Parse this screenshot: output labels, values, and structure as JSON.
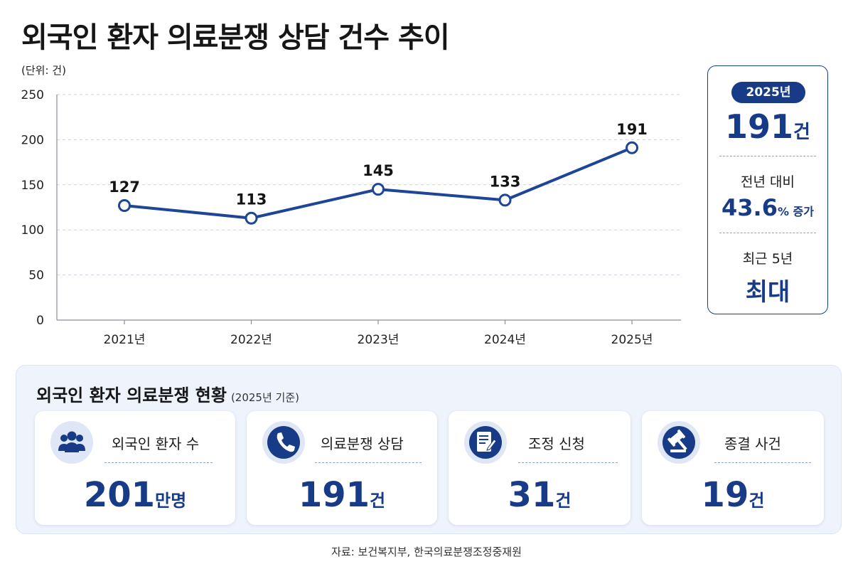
{
  "title": "외국인 환자 의료분쟁 상담 건수 추이",
  "unit_label": "(단위: 건)",
  "colors": {
    "accent": "#173b86",
    "line": "#1e4596",
    "grid": "#c9d1de"
  },
  "chart_data": {
    "type": "line",
    "title": "외국인 환자 의료분쟁 상담 건수 추이",
    "xlabel": "",
    "ylabel": "(단위: 건)",
    "categories": [
      "2021년",
      "2022년",
      "2023년",
      "2024년",
      "2025년"
    ],
    "values": [
      127,
      113,
      145,
      133,
      191
    ],
    "data_labels": [
      "127",
      "113",
      "145",
      "133",
      "191"
    ],
    "y_ticks": [
      "0",
      "50",
      "100",
      "150",
      "200",
      "250"
    ],
    "ylim": [
      0,
      250
    ],
    "grid": true,
    "legend": "none"
  },
  "callout": {
    "year": "2025년",
    "value": "191",
    "value_suffix": "건",
    "change_label": "전년 대비",
    "change_value": "43.6",
    "change_suffix": "% 증가",
    "recent_label": "최근 5년",
    "recent_value": "최대"
  },
  "panel": {
    "title": "외국인 환자 의료분쟁 현황",
    "subtitle": "(2025년 기준)",
    "cards": [
      {
        "icon": "people-icon",
        "label": "외국인 환자 수",
        "value": "201",
        "suffix": "만명"
      },
      {
        "icon": "phone-icon",
        "label": "의료분쟁 상담",
        "value": "191",
        "suffix": "건"
      },
      {
        "icon": "document-edit-icon",
        "label": "조정 신청",
        "value": "31",
        "suffix": "건"
      },
      {
        "icon": "gavel-icon",
        "label": "종결 사건",
        "value": "19",
        "suffix": "건"
      }
    ]
  },
  "source": "자료: 보건복지부, 한국의료분쟁조정중재원"
}
